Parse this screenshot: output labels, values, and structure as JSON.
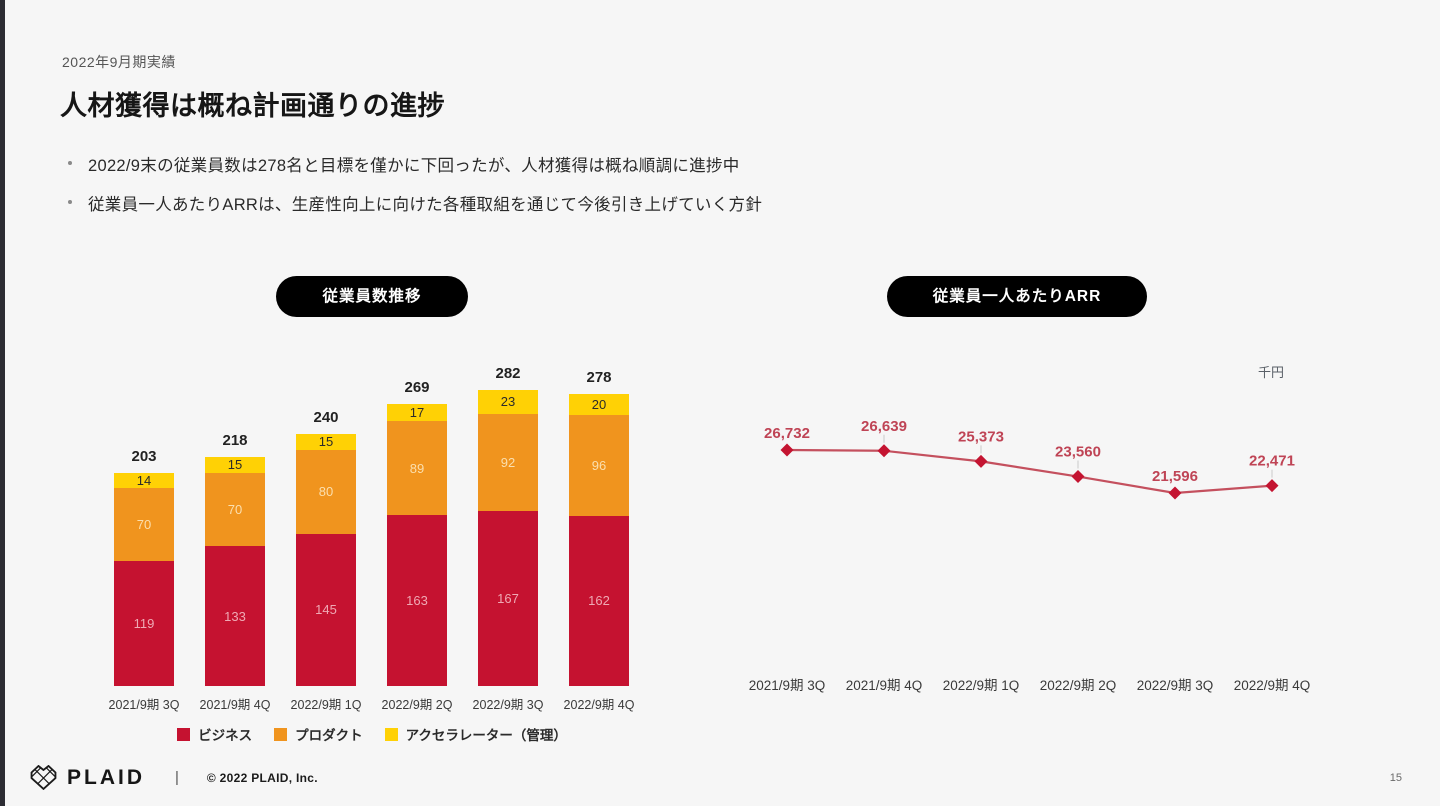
{
  "page": {
    "number": "15"
  },
  "header": {
    "eyebrow": "2022年9月期実績",
    "title": "人材獲得は概ね計画通りの進捗"
  },
  "bullets": [
    "2022/9末の従業員数は278名と目標を僅かに下回ったが、人材獲得は概ね順調に進捗中",
    "従業員一人あたりARRは、生産性向上に向けた各種取組を通じて今後引き上げていく方針"
  ],
  "colors": {
    "background": "#f6f6f6",
    "pill_bg": "#000000",
    "pill_text": "#ffffff",
    "edge_strip": "#2c2c33"
  },
  "chart_data": [
    {
      "id": "headcount",
      "type": "bar",
      "stacked": true,
      "title": "従業員数推移",
      "categories": [
        "2021/9期 3Q",
        "2021/9期 4Q",
        "2022/9期 1Q",
        "2022/9期 2Q",
        "2022/9期 3Q",
        "2022/9期 4Q"
      ],
      "series": [
        {
          "name": "ビジネス",
          "color": "#c51230",
          "label_color": "#efa9b4",
          "values": [
            119,
            133,
            145,
            163,
            167,
            162
          ]
        },
        {
          "name": "プロダクト",
          "color": "#f0941e",
          "label_color": "#fbdfae",
          "values": [
            70,
            70,
            80,
            89,
            92,
            96
          ]
        },
        {
          "name": "アクセラレーター（管理）",
          "color": "#ffd105",
          "label_color": "#2b2b2b",
          "values": [
            14,
            15,
            15,
            17,
            23,
            20
          ]
        }
      ],
      "totals": [
        203,
        218,
        240,
        269,
        282,
        278
      ],
      "ylim": [
        0,
        300
      ],
      "legend_position": "bottom",
      "grid": false
    },
    {
      "id": "arr-per-employee",
      "type": "line",
      "title": "従業員一人あたりARR",
      "unit": "千円",
      "categories": [
        "2021/9期 3Q",
        "2021/9期 4Q",
        "2022/9期 1Q",
        "2022/9期 2Q",
        "2022/9期 3Q",
        "2022/9期 4Q"
      ],
      "values": [
        26732,
        26639,
        25373,
        23560,
        21596,
        22471
      ],
      "labels": [
        "26,732",
        "26,639",
        "25,373",
        "23,560",
        "21,596",
        "22,471"
      ],
      "line_color": "#c4505e",
      "marker_color": "#c41431",
      "label_color": "#bf4455",
      "grid": false,
      "legend_position": "none"
    }
  ],
  "footer": {
    "brand": "PLAID",
    "separator": "|",
    "copyright": "© 2022 PLAID, Inc."
  }
}
